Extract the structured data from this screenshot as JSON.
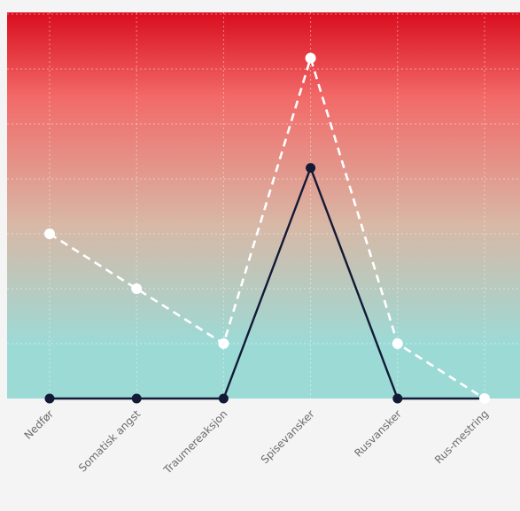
{
  "colors": {
    "page_background": "#f4f4f4",
    "gradient_top": "#d90d1e",
    "gradient_upper": "#f26a68",
    "gradient_mid": "#d8b8a6",
    "gradient_bottom": "#9cdad6",
    "grid": "#ffffff",
    "series_solid": "#121a36",
    "series_dashed": "#ffffff",
    "tick_label": "#6b6b6b"
  },
  "chart_data": {
    "type": "line",
    "categories": [
      "Nedfør",
      "Somatisk angst",
      "Traumereaksjon",
      "Spisevansker",
      "Rusvansker",
      "Rus-mestring"
    ],
    "ylim": [
      0,
      7
    ],
    "grid": true,
    "legend": "none",
    "series": [
      {
        "style": "solid",
        "values": [
          0,
          0,
          0,
          4.2,
          0,
          0
        ]
      },
      {
        "style": "dashed",
        "values": [
          3,
          2,
          1,
          6.2,
          1,
          0
        ]
      }
    ]
  }
}
